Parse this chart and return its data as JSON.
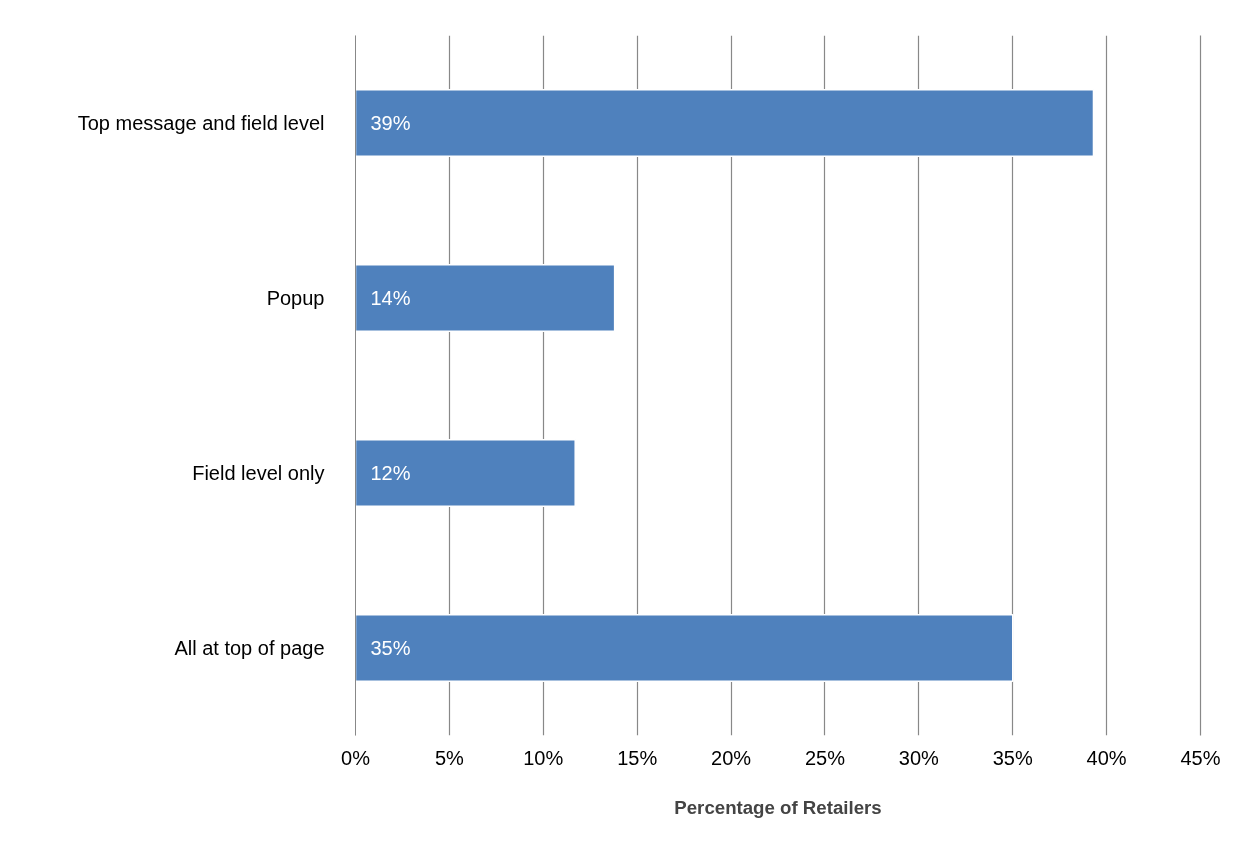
{
  "chart_data": {
    "type": "bar",
    "orientation": "horizontal",
    "xlabel": "Percentage of Retailers",
    "categories": [
      "Top message and field level",
      "Popup",
      "Field level only",
      "All at top of page"
    ],
    "values": [
      39.3,
      13.8,
      11.7,
      35.0
    ],
    "value_labels": [
      "39%",
      "14%",
      "12%",
      "35%"
    ],
    "color": "#4f81bd",
    "xlim": [
      0,
      45
    ],
    "xticks": [
      {
        "value": 0,
        "label": "0%"
      },
      {
        "value": 5,
        "label": "5%"
      },
      {
        "value": 10,
        "label": "10%"
      },
      {
        "value": 15,
        "label": "15%"
      },
      {
        "value": 20,
        "label": "20%"
      },
      {
        "value": 25,
        "label": "25%"
      },
      {
        "value": 30,
        "label": "30%"
      },
      {
        "value": 35,
        "label": "35%"
      },
      {
        "value": 40,
        "label": "40%"
      },
      {
        "value": 45,
        "label": "45%"
      }
    ],
    "grid": "x"
  }
}
